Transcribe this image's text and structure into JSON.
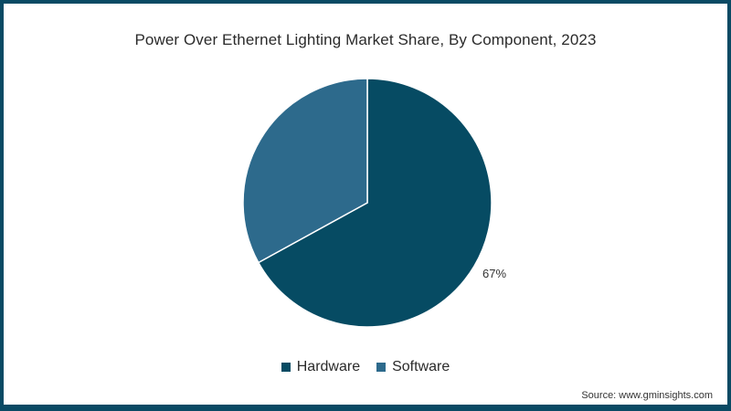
{
  "title": "Power Over Ethernet Lighting Market Share, By Component, 2023",
  "source": "Source: www.gminsights.com",
  "colors": {
    "border": "#0a4a64",
    "hardware": "#064b63",
    "software": "#2d6a8c"
  },
  "legend": [
    {
      "label": "Hardware",
      "color": "#064b63"
    },
    {
      "label": "Software",
      "color": "#2d6a8c"
    }
  ],
  "data_labels": {
    "hardware": "67%"
  },
  "chart_data": {
    "type": "pie",
    "title": "Power Over Ethernet Lighting Market Share, By Component, 2023",
    "categories": [
      "Hardware",
      "Software"
    ],
    "values": [
      67,
      33
    ],
    "unit": "%",
    "visible_labels": [
      "67%"
    ],
    "legend_position": "bottom",
    "start_angle": "12 o'clock, clockwise"
  }
}
